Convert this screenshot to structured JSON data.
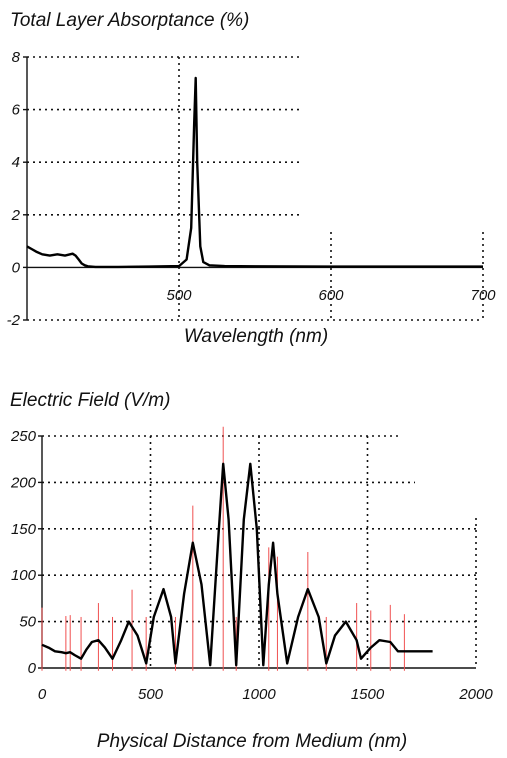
{
  "chart_data": [
    {
      "type": "line",
      "title": "Total Layer Absorptance (%)",
      "xlabel": "Wavelength (nm)",
      "ylabel": "",
      "xlim": [
        400,
        700
      ],
      "ylim": [
        -2,
        8
      ],
      "xticks": [
        "500",
        "600",
        "700"
      ],
      "yticks": [
        "-2",
        "0",
        "2",
        "4",
        "6",
        "8"
      ],
      "grid": true,
      "series": [
        {
          "x": [
            400,
            403,
            406,
            410,
            415,
            420,
            425,
            430,
            432,
            434,
            436,
            438,
            440,
            445,
            450,
            460,
            480,
            500,
            505,
            508,
            510,
            511,
            512,
            514,
            516,
            520,
            530,
            550,
            600,
            650,
            700
          ],
          "y": [
            0.8,
            0.7,
            0.6,
            0.5,
            0.45,
            0.5,
            0.45,
            0.52,
            0.45,
            0.3,
            0.15,
            0.08,
            0.04,
            0.02,
            0.02,
            0.02,
            0.03,
            0.05,
            0.3,
            1.5,
            5.5,
            7.2,
            4.0,
            0.8,
            0.2,
            0.08,
            0.05,
            0.04,
            0.03,
            0.03,
            0.03
          ]
        }
      ]
    },
    {
      "type": "line",
      "title": "Electric Field (V/m)",
      "xlabel": "Physical Distance from Medium (nm)",
      "ylabel": "",
      "xlim": [
        0,
        2000
      ],
      "ylim": [
        0,
        250
      ],
      "xticks": [
        "0",
        "500",
        "1000",
        "1500",
        "2000"
      ],
      "yticks": [
        "0",
        "50",
        "100",
        "150",
        "200",
        "250"
      ],
      "grid": true,
      "layer_boundaries": [
        0,
        110,
        130,
        180,
        260,
        325,
        415,
        480,
        615,
        695,
        835,
        895,
        1045,
        1085,
        1225,
        1310,
        1450,
        1515,
        1605,
        1670
      ],
      "series": [
        {
          "x": [
            0,
            30,
            60,
            90,
            110,
            130,
            150,
            180,
            205,
            230,
            260,
            290,
            325,
            365,
            400,
            440,
            480,
            515,
            560,
            595,
            615,
            655,
            695,
            735,
            775,
            815,
            835,
            860,
            895,
            930,
            960,
            990,
            1020,
            1045,
            1065,
            1085,
            1130,
            1180,
            1225,
            1275,
            1310,
            1350,
            1400,
            1450,
            1470,
            1515,
            1555,
            1605,
            1640,
            1670,
            1700,
            1750,
            1800
          ],
          "y": [
            25,
            22,
            18,
            17,
            16,
            17,
            14,
            10,
            20,
            28,
            30,
            22,
            10,
            30,
            50,
            35,
            5,
            55,
            85,
            55,
            5,
            80,
            135,
            90,
            3,
            150,
            220,
            160,
            3,
            160,
            220,
            150,
            3,
            90,
            135,
            80,
            5,
            55,
            85,
            55,
            5,
            35,
            50,
            30,
            10,
            22,
            30,
            28,
            18,
            18,
            18,
            18,
            18
          ]
        }
      ]
    }
  ]
}
